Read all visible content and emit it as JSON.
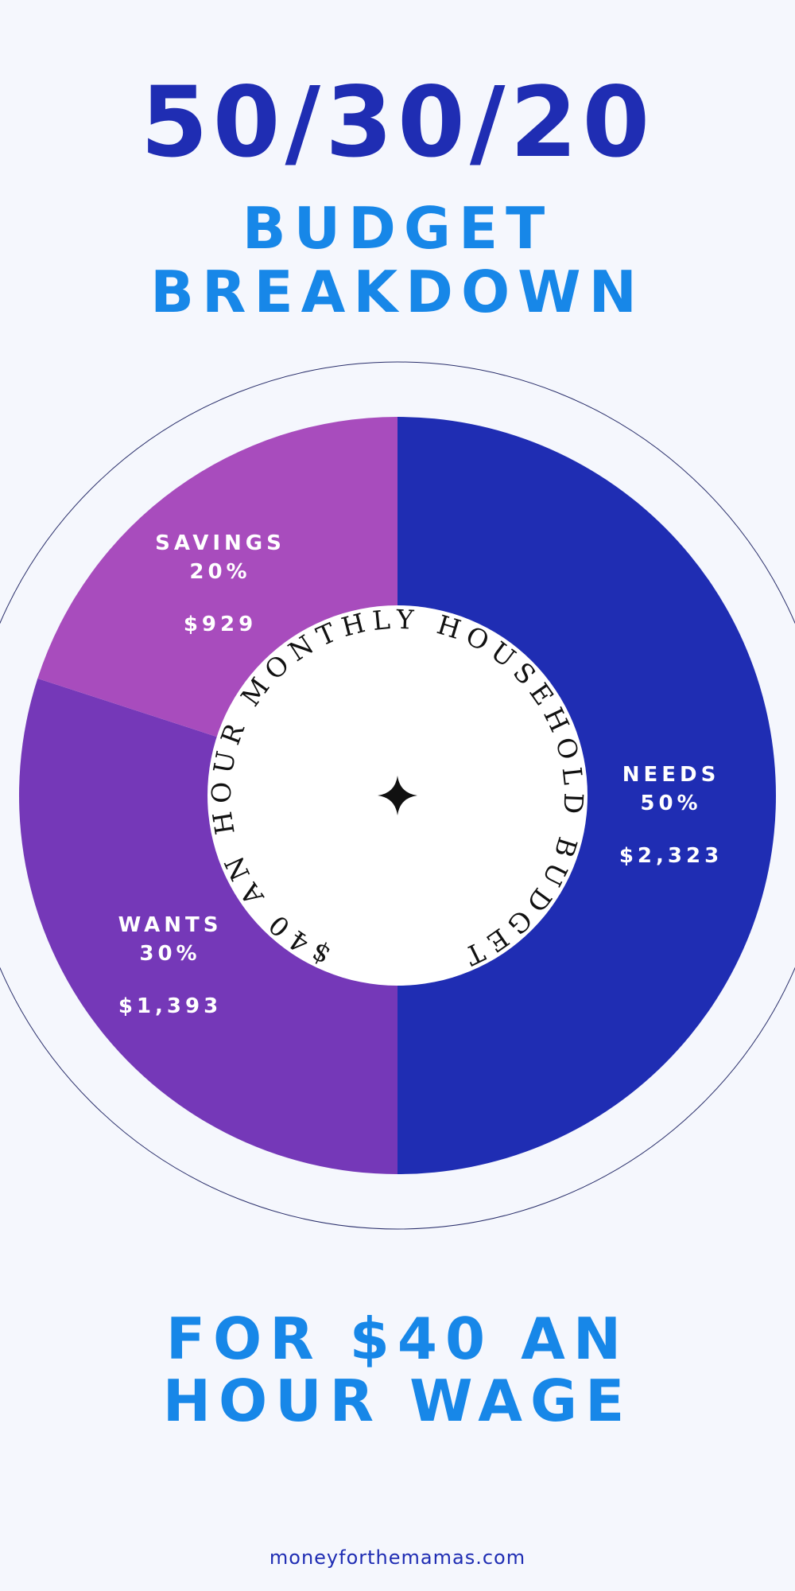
{
  "chart_data": {
    "type": "donut",
    "title": "50/30/20",
    "subtitle": [
      "BUDGET",
      "BREAKDOWN"
    ],
    "center_text": "$40 AN HOUR MONTHLY HOUSEHOLD BUDGET",
    "categories": [
      "NEEDS",
      "WANTS",
      "SAVINGS"
    ],
    "values": [
      50,
      30,
      20
    ],
    "value_labels": [
      "50%",
      "30%",
      "20%"
    ],
    "amount_labels": [
      "$2,323",
      "$1,393",
      "$929"
    ],
    "colors": [
      "#1f2db3",
      "#7538b8",
      "#a84cbd"
    ],
    "footer_title": [
      "FOR $40 AN",
      "HOUR WAGE"
    ],
    "source": "moneyforthemamas.com"
  }
}
